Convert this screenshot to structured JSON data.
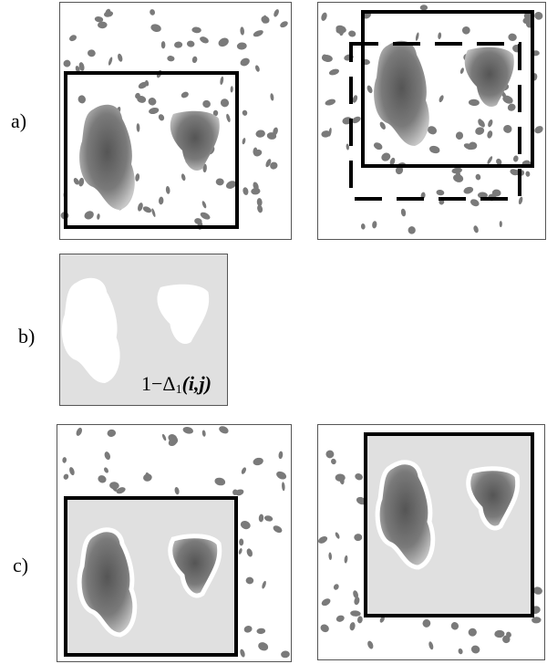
{
  "labels": {
    "a": "a)",
    "b": "b)",
    "c": "c)"
  },
  "formula": {
    "prefix": "1−Δ",
    "subscript": "1",
    "args": "(i,j)"
  }
}
